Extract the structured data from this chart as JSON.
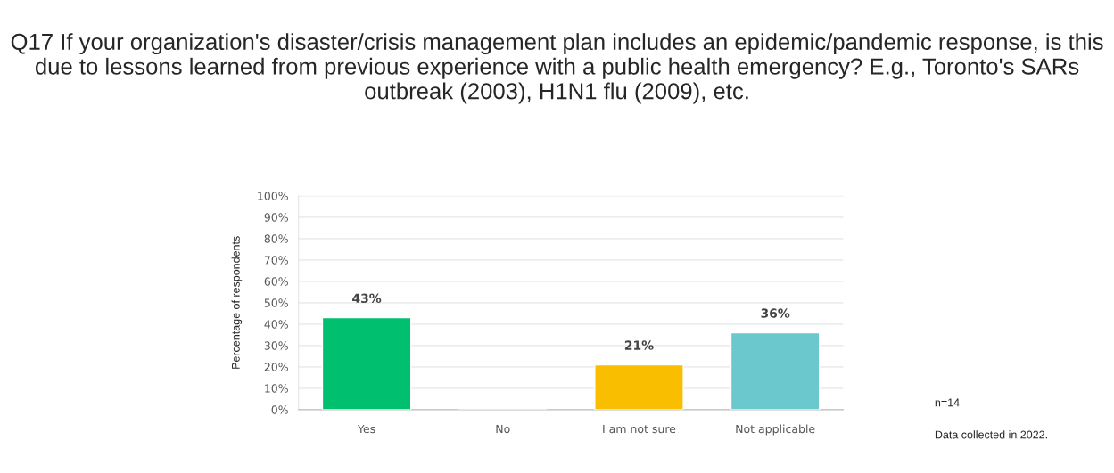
{
  "chart_data": {
    "type": "bar",
    "title": "Q17 If your organization's disaster/crisis management plan includes an epidemic/pandemic response, is this due to lessons learned from previous experience with a public health emergency? E.g., Toronto's SARs outbreak (2003), H1N1 flu (2009), etc.",
    "ylabel": "Percentage of respondents",
    "categories": [
      "Yes",
      "No",
      "I am not sure",
      "Not applicable"
    ],
    "values": [
      43,
      0,
      21,
      36
    ],
    "colors": [
      "#00bf6f",
      null,
      "#f9be00",
      "#6bc8cd"
    ],
    "value_labels": [
      "43%",
      null,
      "21%",
      "36%"
    ],
    "ylim": [
      0,
      100
    ],
    "yticks": [
      {
        "value": 0,
        "label": "0%"
      },
      {
        "value": 10,
        "label": "10%"
      },
      {
        "value": 20,
        "label": "20%"
      },
      {
        "value": 30,
        "label": "30%"
      },
      {
        "value": 40,
        "label": "40%"
      },
      {
        "value": 50,
        "label": "50%"
      },
      {
        "value": 60,
        "label": "60%"
      },
      {
        "value": 70,
        "label": "70%"
      },
      {
        "value": 80,
        "label": "80%"
      },
      {
        "value": 90,
        "label": "90%"
      },
      {
        "value": 100,
        "label": "100%"
      }
    ],
    "grid": "y",
    "annotations": [
      "n=14",
      "Data collected in 2022."
    ]
  }
}
